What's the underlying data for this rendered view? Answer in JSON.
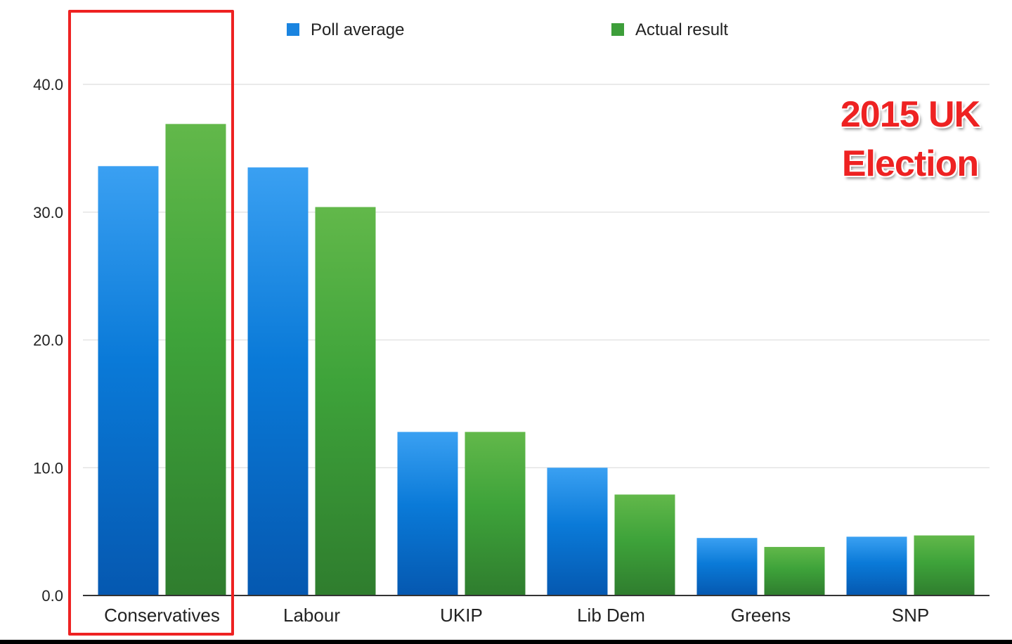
{
  "chart_data": {
    "type": "bar",
    "categories": [
      "Conservatives",
      "Labour",
      "UKIP",
      "Lib Dem",
      "Greens",
      "SNP"
    ],
    "series": [
      {
        "name": "Poll average",
        "values": [
          33.6,
          33.5,
          12.8,
          10.0,
          4.5,
          4.6
        ],
        "color": "#1a84e0"
      },
      {
        "name": "Actual result",
        "values": [
          36.9,
          30.4,
          12.8,
          7.9,
          3.8,
          4.7
        ],
        "color": "#3d9e3a"
      }
    ],
    "yticks": [
      "0.0",
      "10.0",
      "20.0",
      "30.0",
      "40.0"
    ],
    "ylim": [
      0,
      40
    ],
    "grid": true,
    "legend_position": "top"
  },
  "annotation": {
    "line1": "2015 UK",
    "line2": "Election",
    "color": "#ee2222"
  },
  "highlight": {
    "category": "Conservatives",
    "color": "#ee2222"
  }
}
